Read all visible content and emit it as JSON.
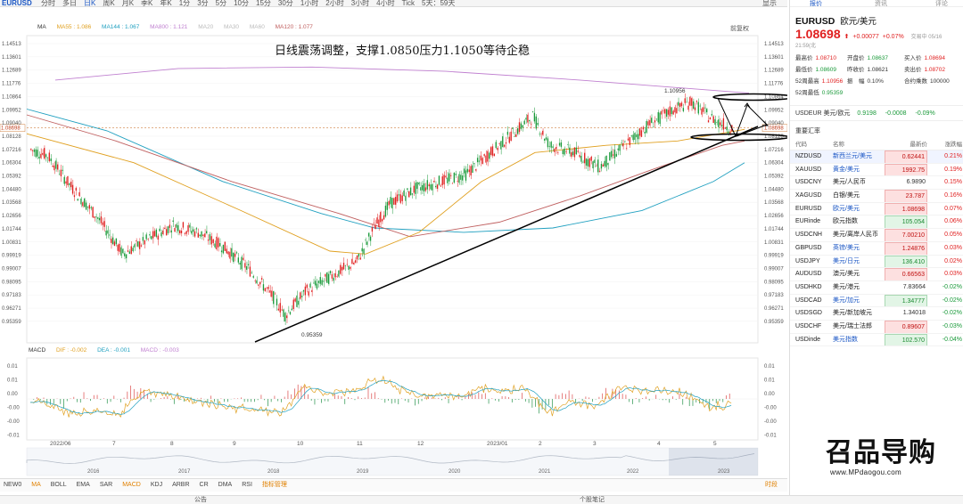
{
  "toolbar": {
    "symbol": "EURUSD",
    "periods": [
      "分时",
      "多日",
      "日K",
      "周K",
      "月K",
      "季K",
      "年K",
      "1分",
      "3分",
      "5分",
      "10分",
      "15分",
      "30分",
      "1小时",
      "2小时",
      "3小时",
      "4小时",
      "Tick",
      "5天：59天"
    ],
    "active_period": "日K",
    "right": "显示"
  },
  "chart": {
    "annotation": "日线震荡调整，支撑1.0850压力1.1050等待企稳",
    "corner_label": "前复权",
    "legend": {
      "ma": "MA",
      "ma55": "MA55 : 1.086",
      "ma144": "MA144 : 1.067",
      "ma800": "MA800 : 1.121",
      "ma20": "MA20",
      "ma30": "MA30",
      "ma60": "MA60",
      "ma120": "MA120 : 1.077"
    },
    "price_ticks_left": [
      "1.14513",
      "1.13601",
      "1.12689",
      "1.11776",
      "1.10864",
      "1.09952",
      "1.09040",
      "1.08128",
      "1.07216",
      "1.06304",
      "1.05392",
      "1.04480",
      "1.03568",
      "1.02656",
      "1.01744",
      "1.00831",
      "0.99919",
      "0.99007",
      "0.98095",
      "0.97183",
      "0.96271",
      "0.95359"
    ],
    "price_ticks_right": [
      "1.14513",
      "1.13601",
      "1.12689",
      "1.11776",
      "1.10864",
      "1.09952",
      "1.09040",
      "1.08128",
      "1.07216",
      "1.06304",
      "1.05392",
      "1.04480",
      "1.03568",
      "1.02656",
      "1.01744",
      "1.00831",
      "0.99919",
      "0.99007",
      "0.98095",
      "0.97183",
      "0.96271",
      "0.95359"
    ],
    "current_price_label": "1.08698",
    "high_label": "1.10956",
    "low_label": "0.95359",
    "time_ticks": [
      "2022/06",
      "7",
      "8",
      "9",
      "10",
      "11",
      "12",
      "2023/01",
      "2",
      "3",
      "4",
      "5"
    ]
  },
  "macd": {
    "title": "MACD",
    "dif": "DIF : -0.002",
    "dea": "DEA : -0.001",
    "macd": "MACD : -0.003",
    "ticks": [
      "0.01",
      "0.01",
      "0.00",
      "-0.00",
      "-0.00",
      "-0.01"
    ]
  },
  "overview": {
    "years": [
      "2016",
      "2017",
      "2018",
      "2019",
      "2020",
      "2021",
      "2022",
      "2023"
    ]
  },
  "indicators": [
    "NEW0",
    "MA",
    "BOLL",
    "EMA",
    "SAR",
    "MACD",
    "KDJ",
    "ARBR",
    "CR",
    "DMA",
    "RSI",
    "指标管理"
  ],
  "indicator_right": "时段",
  "status": {
    "left": "公告",
    "center": "个股笔记"
  },
  "quote": {
    "tabs": [
      "报价",
      "资讯",
      "评论"
    ],
    "symbol": "EURUSD",
    "name": "欧元/美元",
    "price": "1.08698",
    "change": "+0.00077",
    "pct": "+0.07%",
    "time": "交易中 05/16 21:59(北",
    "stats": [
      {
        "label": "最高价",
        "value": "1.08710",
        "color": "red"
      },
      {
        "label": "开盘价",
        "value": "1.08637",
        "color": "green"
      },
      {
        "label": "买入价",
        "value": "1.08694",
        "color": "red"
      },
      {
        "label": "最低价",
        "value": "1.08609",
        "color": "green"
      },
      {
        "label": "昨收价",
        "value": "1.08621",
        "color": "plain"
      },
      {
        "label": "卖出价",
        "value": "1.08702",
        "color": "red"
      },
      {
        "label": "52周最高",
        "value": "1.10956",
        "color": "red"
      },
      {
        "label": "振　幅",
        "value": "0.10%",
        "color": "plain"
      },
      {
        "label": "合约乘数",
        "value": "100000",
        "color": "plain"
      },
      {
        "label": "52周最低",
        "value": "0.95359",
        "color": "green"
      }
    ],
    "usd_row": {
      "code": "USDEUR",
      "name": "美元/欧元",
      "price": "0.9198",
      "chg": "-0.0008",
      "pct": "-0.09%"
    }
  },
  "watchlist": {
    "title": "重要汇率",
    "headers": [
      "代码",
      "名称",
      "最新价",
      "涨跌幅"
    ],
    "rows": [
      {
        "code": "NZDUSD",
        "name": "新西兰元/美元",
        "price": "0.62441",
        "pct": "0.21%",
        "dir": "up",
        "hl": true,
        "sel": true
      },
      {
        "code": "XAUUSD",
        "name": "黄金/美元",
        "price": "1992.75",
        "pct": "0.19%",
        "dir": "up",
        "hl": true
      },
      {
        "code": "USDCNY",
        "name": "美元/人民币",
        "price": "6.9890",
        "pct": "0.15%",
        "dir": "flat",
        "hl": false
      },
      {
        "code": "XAGUSD",
        "name": "白银/美元",
        "price": "23.787",
        "pct": "0.16%",
        "dir": "up",
        "hl": false
      },
      {
        "code": "EURUSD",
        "name": "欧元/美元",
        "price": "1.08698",
        "pct": "0.07%",
        "dir": "up",
        "hl": true
      },
      {
        "code": "EURinde",
        "name": "欧元指数",
        "price": "105.054",
        "pct": "0.06%",
        "dir": "dn",
        "hl": false
      },
      {
        "code": "USDCNH",
        "name": "美元/离岸人民币",
        "price": "7.00210",
        "pct": "0.05%",
        "dir": "up",
        "hl": false
      },
      {
        "code": "GBPUSD",
        "name": "英镑/美元",
        "price": "1.24876",
        "pct": "0.03%",
        "dir": "up",
        "hl": true
      },
      {
        "code": "USDJPY",
        "name": "美元/日元",
        "price": "136.410",
        "pct": "0.02%",
        "dir": "dn",
        "hl": true
      },
      {
        "code": "AUDUSD",
        "name": "澳元/美元",
        "price": "0.66563",
        "pct": "0.03%",
        "dir": "up",
        "hl": false
      },
      {
        "code": "USDHKD",
        "name": "美元/港元",
        "price": "7.83664",
        "pct": "-0.02%",
        "dir": "flat",
        "hl": false
      },
      {
        "code": "USDCAD",
        "name": "美元/加元",
        "price": "1.34777",
        "pct": "-0.02%",
        "dir": "dn",
        "hl": true
      },
      {
        "code": "USDSGD",
        "name": "美元/新加坡元",
        "price": "1.34018",
        "pct": "-0.02%",
        "dir": "flat",
        "hl": false
      },
      {
        "code": "USDCHF",
        "name": "美元/瑞士法郎",
        "price": "0.89607",
        "pct": "-0.03%",
        "dir": "up",
        "hl": false
      },
      {
        "code": "USDinde",
        "name": "美元指数",
        "price": "102.570",
        "pct": "-0.04%",
        "dir": "dn",
        "hl": true
      }
    ]
  },
  "watermark": {
    "title": "召品导购",
    "url": "www.MPdaogou.com"
  },
  "colors": {
    "up": "#e02020",
    "down": "#1a9a3a",
    "ma55": "#e0a020",
    "ma144": "#20a0c0",
    "ma800": "#c080d0",
    "ma120": "#c06060"
  }
}
